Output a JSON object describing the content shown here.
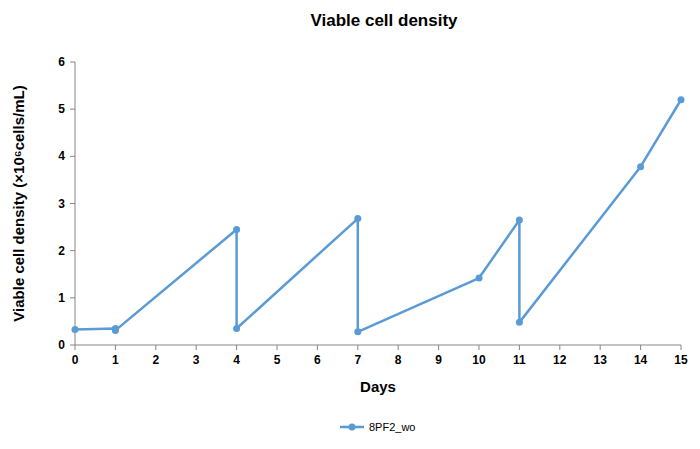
{
  "chart_data": {
    "type": "line",
    "title": "Viable cell density",
    "x_label": "Days",
    "y_label": "Viable cell density (×10⁶cells/mL)",
    "x": [
      0,
      1,
      1,
      4,
      4,
      7,
      7,
      10,
      11,
      11,
      14,
      15
    ],
    "series": [
      {
        "name": "8PF2_wo",
        "color": "#5b9bd5",
        "marker": "circle",
        "values": [
          0.33,
          0.35,
          0.31,
          2.45,
          0.35,
          2.68,
          0.28,
          1.42,
          2.65,
          0.48,
          3.78,
          5.2
        ]
      }
    ],
    "xlim": [
      0,
      15
    ],
    "xticks": [
      0,
      1,
      2,
      3,
      4,
      5,
      6,
      7,
      8,
      9,
      10,
      11,
      12,
      13,
      14,
      15
    ],
    "ylim": [
      0,
      6
    ],
    "yticks": [
      0,
      1,
      2,
      3,
      4,
      5,
      6
    ],
    "grid": false,
    "legend": "bottom"
  }
}
